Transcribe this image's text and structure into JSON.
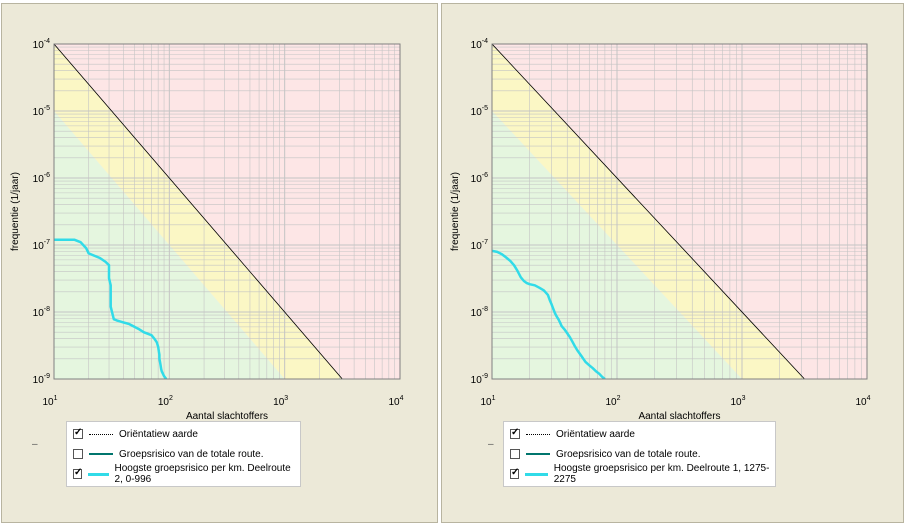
{
  "colors": {
    "panel_bg": "#ece9d8",
    "zone_red": "#fde6e6",
    "zone_yellow": "#fbf7c5",
    "zone_green": "#e5f6df",
    "grid": "#c4c4c4",
    "guide_line": "#000000",
    "risk_curve": "#31dbe8",
    "total_route": "#00756d"
  },
  "charts": [
    {
      "legend": [
        {
          "checked": true,
          "style": "dotted",
          "label": "Oriëntatiew aarde"
        },
        {
          "checked": false,
          "style": "teal",
          "label": "Groepsrisico van de totale route."
        },
        {
          "checked": true,
          "style": "cyan",
          "label": "Hoogste groepsrisico per km. Deelroute 2, 0-996"
        }
      ]
    },
    {
      "legend": [
        {
          "checked": true,
          "style": "dotted",
          "label": "Oriëntatiew aarde"
        },
        {
          "checked": false,
          "style": "teal",
          "label": "Groepsrisico van de totale route."
        },
        {
          "checked": true,
          "style": "cyan",
          "label": "Hoogste groepsrisico per km. Deelroute 1, 1275-2275"
        }
      ]
    }
  ],
  "chart_data": [
    {
      "type": "line",
      "xscale": "log",
      "yscale": "log",
      "xlim": [
        10,
        10000
      ],
      "ylim": [
        1e-09,
        0.0001
      ],
      "xlabel": "Aantal slachtoffers",
      "ylabel": "frequentie  (1/jaar)",
      "xticks": [
        "10",
        "10",
        "10",
        "10"
      ],
      "xtick_exp": [
        "1",
        "2",
        "3",
        "4"
      ],
      "yticks": [
        "10",
        "10",
        "10",
        "10",
        "10",
        "10"
      ],
      "ytick_exp": [
        "-9",
        "-8",
        "-7",
        "-6",
        "-5",
        "-4"
      ],
      "grid": true,
      "legend_position": "bottom",
      "series": [
        {
          "name": "Oriëntatiew aarde",
          "x": [
            10,
            3162
          ],
          "y": [
            0.0001,
            1e-09
          ]
        },
        {
          "name": "Hoogste groepsrisico per km. Deelroute 2, 0-996",
          "x": [
            10,
            15,
            17,
            19,
            20,
            22,
            25,
            28,
            30,
            30,
            31,
            31,
            33,
            35,
            40,
            45,
            50,
            55,
            60,
            70,
            75,
            78,
            80,
            81,
            82,
            82,
            83,
            84,
            85,
            86,
            88,
            90,
            92,
            94
          ],
          "y": [
            1.2e-07,
            1.2e-07,
            1.1e-07,
            9e-08,
            7.5e-08,
            7e-08,
            6.4e-08,
            5.6e-08,
            5e-08,
            3.2e-08,
            2.5e-08,
            1.2e-08,
            7.8e-09,
            7.5e-09,
            7e-09,
            6.6e-09,
            6e-09,
            5.5e-09,
            5e-09,
            4.5e-09,
            3.9e-09,
            3.5e-09,
            3e-09,
            2.6e-09,
            2.3e-09,
            2e-09,
            1.8e-09,
            1.6e-09,
            1.4e-09,
            1.3e-09,
            1.2e-09,
            1.1e-09,
            1.05e-09,
            1e-09
          ]
        }
      ]
    },
    {
      "type": "line",
      "xscale": "log",
      "yscale": "log",
      "xlim": [
        10,
        10000
      ],
      "ylim": [
        1e-09,
        0.0001
      ],
      "xlabel": "Aantal slachtoffers",
      "ylabel": "frequentie  (1/jaar)",
      "xticks": [
        "10",
        "10",
        "10",
        "10"
      ],
      "xtick_exp": [
        "1",
        "2",
        "3",
        "4"
      ],
      "yticks": [
        "10",
        "10",
        "10",
        "10",
        "10",
        "10"
      ],
      "ytick_exp": [
        "-9",
        "-8",
        "-7",
        "-6",
        "-5",
        "-4"
      ],
      "grid": true,
      "legend_position": "bottom",
      "series": [
        {
          "name": "Oriëntatiew aarde",
          "x": [
            10,
            3162
          ],
          "y": [
            0.0001,
            1e-09
          ]
        },
        {
          "name": "Hoogste groepsrisico per km. Deelroute 1, 1275-2275",
          "x": [
            10,
            11,
            12,
            13,
            14,
            15,
            16,
            17,
            18,
            19,
            20,
            22,
            24,
            26,
            28,
            29,
            30,
            31,
            32,
            33,
            34,
            35,
            36,
            38,
            40,
            42,
            44,
            46,
            48,
            52,
            56,
            60,
            64,
            68,
            72,
            76,
            80
          ],
          "y": [
            8.2e-08,
            7.9e-08,
            7.3e-08,
            6.5e-08,
            5.8e-08,
            5e-08,
            4.1e-08,
            3.3e-08,
            2.9e-08,
            2.7e-08,
            2.6e-08,
            2.5e-08,
            2.3e-08,
            2.1e-08,
            1.8e-08,
            1.5e-08,
            1.3e-08,
            1.1e-08,
            9.5e-09,
            8.5e-09,
            7.8e-09,
            7e-09,
            6.2e-09,
            5.5e-09,
            4.8e-09,
            4.2e-09,
            3.6e-09,
            3.1e-09,
            2.7e-09,
            2.2e-09,
            1.8e-09,
            1.6e-09,
            1.45e-09,
            1.3e-09,
            1.2e-09,
            1.08e-09,
            1e-09
          ]
        }
      ]
    }
  ]
}
